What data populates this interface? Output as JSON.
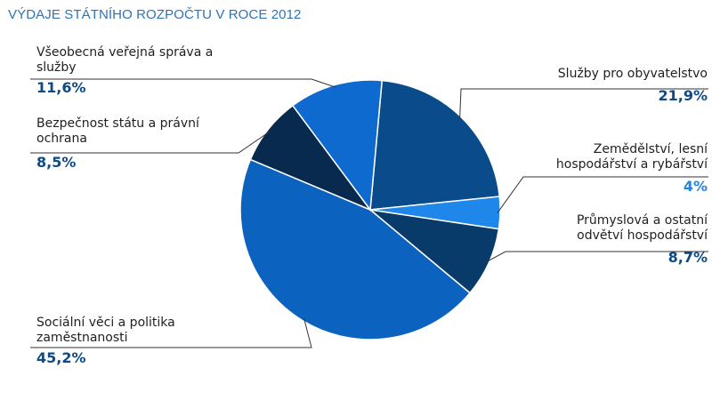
{
  "chart_data": {
    "type": "pie",
    "title": "VÝDAJE STÁTNÍHO ROZPOČTU V ROCE 2012",
    "slices": [
      {
        "label": "Služby pro obyvatelstvo",
        "value": 21.9,
        "value_label": "21,9%",
        "color": "#0a4b8b"
      },
      {
        "label": "Zemědělství, lesní hospodářství a rybářství",
        "value": 4,
        "value_label": "4%",
        "color": "#1f86ea"
      },
      {
        "label": "Průmyslová a ostatní odvětví hospodářství",
        "value": 8.7,
        "value_label": "8,7%",
        "color": "#083a6a"
      },
      {
        "label": "Sociální věci a politika zaměstnanosti",
        "value": 45.2,
        "value_label": "45,2%",
        "color": "#0b62bf"
      },
      {
        "label": "Bezpečnost státu a právní ochrana",
        "value": 8.5,
        "value_label": "8,5%",
        "color": "#072a4e"
      },
      {
        "label": "Všeobecná veřejná správa a služby",
        "value": 11.6,
        "value_label": "11,6%",
        "color": "#0e6ace"
      }
    ]
  }
}
